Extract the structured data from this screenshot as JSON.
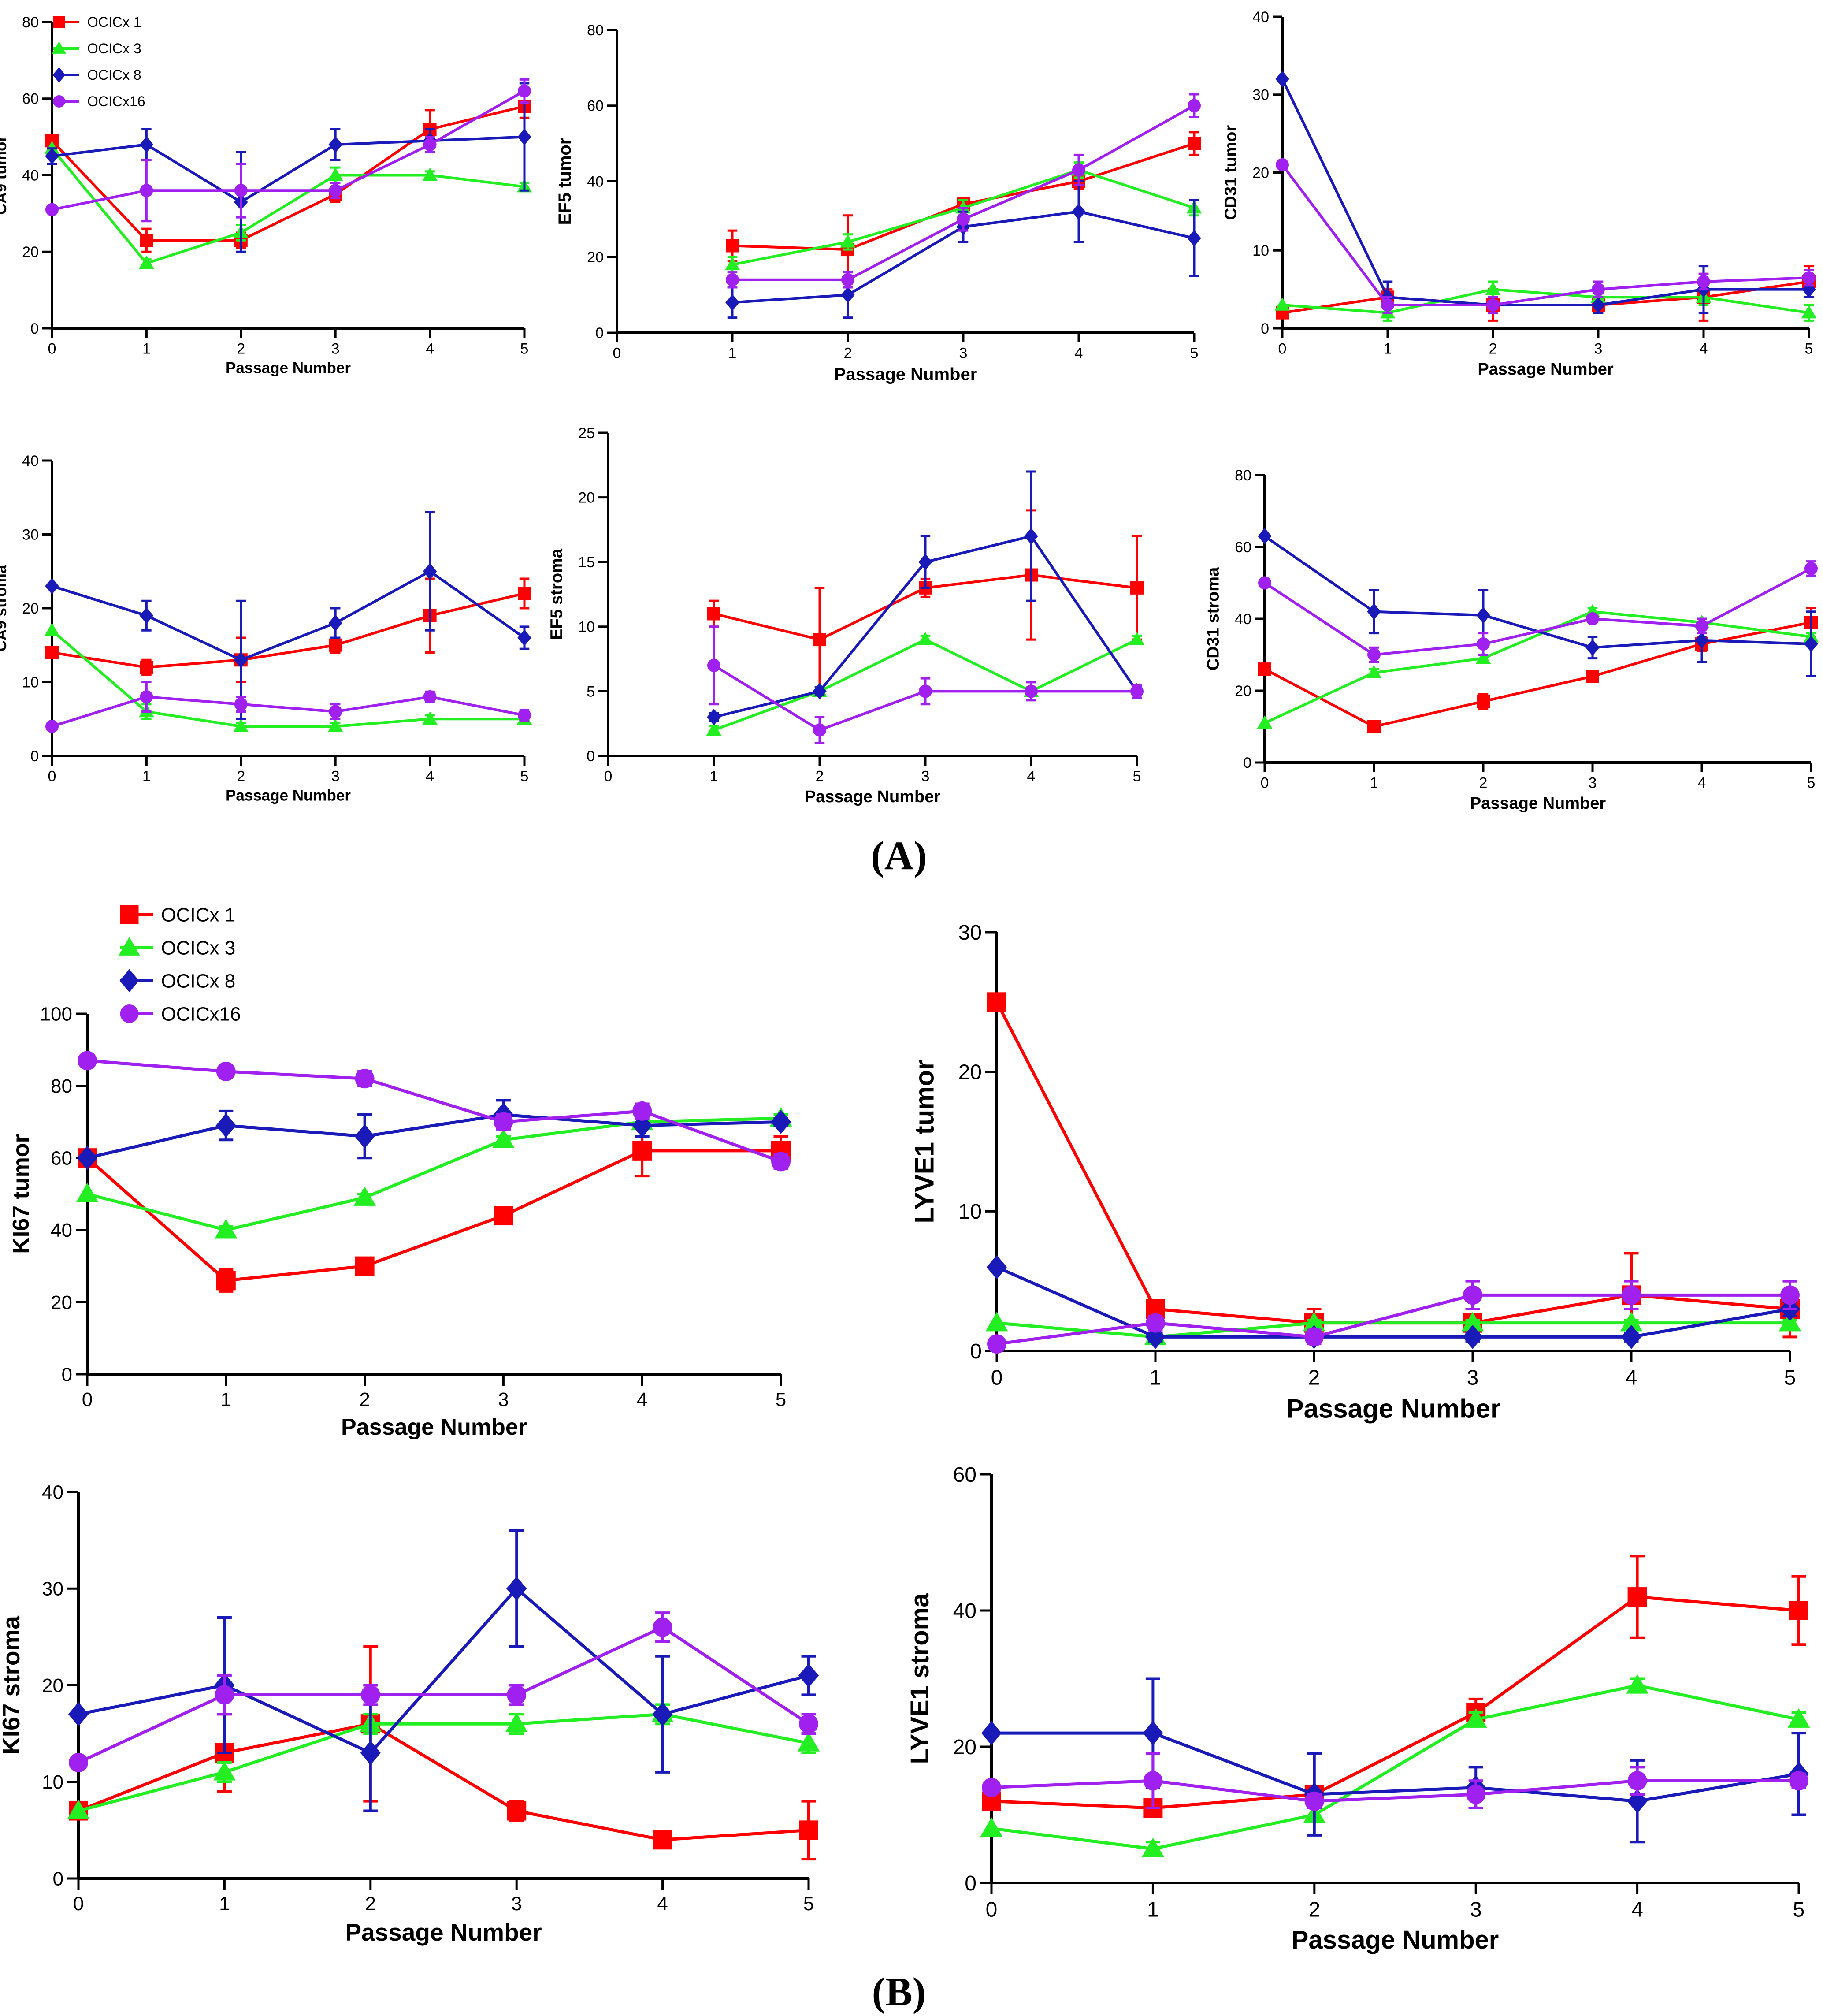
{
  "panel_labels": [
    "(A)",
    "(B)"
  ],
  "colors": {
    "OCICx 1": "#ff0000",
    "OCICx 3": "#22ee22",
    "OCICx 8": "#1a1ab8",
    "OCICx16": "#a020f0"
  },
  "markers": {
    "OCICx 1": "square",
    "OCICx 3": "triangle",
    "OCICx 8": "diamond",
    "OCICx16": "circle"
  },
  "chart_data": [
    {
      "type": "line",
      "title": "",
      "xlabel": "Passage Number",
      "ylabel": "CA9 tumor",
      "x": [
        0,
        1,
        2,
        3,
        4,
        5
      ],
      "xlim": [
        0,
        5
      ],
      "ylim": [
        0,
        80
      ],
      "yticks": [
        0,
        20,
        40,
        60,
        80
      ],
      "legend": [
        "OCICx 1",
        "OCICx 3",
        "OCICx 8",
        "OCICx16"
      ],
      "series": [
        {
          "name": "OCICx 1",
          "values": [
            49,
            23,
            23,
            35,
            52,
            58
          ],
          "err": [
            0,
            3,
            2,
            2,
            5,
            3
          ]
        },
        {
          "name": "OCICx 3",
          "values": [
            47,
            17,
            25,
            40,
            40,
            37
          ],
          "err": [
            0,
            1,
            2,
            2,
            1,
            1
          ]
        },
        {
          "name": "OCICx 8",
          "values": [
            45,
            48,
            33,
            48,
            49,
            50
          ],
          "err": [
            2,
            4,
            13,
            4,
            3,
            14
          ]
        },
        {
          "name": "OCICx16",
          "values": [
            31,
            36,
            36,
            36,
            48,
            62
          ],
          "err": [
            0,
            8,
            7,
            2,
            2,
            3
          ]
        }
      ]
    },
    {
      "type": "line",
      "title": "",
      "xlabel": "Passage Number",
      "ylabel": "EF5 tumor",
      "x": [
        1,
        2,
        3,
        4,
        5
      ],
      "xlim": [
        0,
        5
      ],
      "ylim": [
        0,
        80
      ],
      "yticks": [
        0,
        20,
        40,
        60,
        80
      ],
      "series": [
        {
          "name": "OCICx 1",
          "values": [
            23,
            22,
            34,
            40,
            50
          ],
          "err": [
            4,
            9,
            1,
            2,
            3
          ]
        },
        {
          "name": "OCICx 3",
          "values": [
            18,
            24,
            33,
            43,
            33
          ],
          "err": [
            2,
            2,
            2,
            2,
            2
          ]
        },
        {
          "name": "OCICx 8",
          "values": [
            8,
            10,
            28,
            32,
            25
          ],
          "err": [
            4,
            6,
            4,
            8,
            10
          ]
        },
        {
          "name": "OCICx16",
          "values": [
            14,
            14,
            30,
            43,
            60
          ],
          "err": [
            2,
            2,
            3,
            4,
            3
          ]
        }
      ]
    },
    {
      "type": "line",
      "title": "",
      "xlabel": "Passage Number",
      "ylabel": "CD31 tumor",
      "x": [
        0,
        1,
        2,
        3,
        4,
        5
      ],
      "xlim": [
        0,
        5
      ],
      "ylim": [
        0,
        40
      ],
      "yticks": [
        0,
        10,
        20,
        30,
        40
      ],
      "series": [
        {
          "name": "OCICx 1",
          "values": [
            2,
            4,
            3,
            3,
            4,
            6
          ],
          "err": [
            0,
            1,
            2,
            1,
            3,
            2
          ]
        },
        {
          "name": "OCICx 3",
          "values": [
            3,
            2,
            5,
            4,
            4,
            2
          ],
          "err": [
            0,
            1,
            1,
            1,
            1,
            1
          ]
        },
        {
          "name": "OCICx 8",
          "values": [
            32,
            4,
            3,
            3,
            5,
            5
          ],
          "err": [
            0,
            2,
            1,
            1,
            3,
            1
          ]
        },
        {
          "name": "OCICx16",
          "values": [
            21,
            3,
            3,
            5,
            6,
            6.5
          ],
          "err": [
            0,
            1,
            1,
            1,
            1,
            1
          ]
        }
      ]
    },
    {
      "type": "line",
      "title": "",
      "xlabel": "Passage Number",
      "ylabel": "CA9 stroma",
      "x": [
        0,
        1,
        2,
        3,
        4,
        5
      ],
      "xlim": [
        0,
        5
      ],
      "ylim": [
        0,
        40
      ],
      "yticks": [
        0,
        10,
        20,
        30,
        40
      ],
      "series": [
        {
          "name": "OCICx 1",
          "values": [
            14,
            12,
            13,
            15,
            19,
            22
          ],
          "err": [
            0,
            1,
            3,
            1,
            5,
            2
          ]
        },
        {
          "name": "OCICx 3",
          "values": [
            17,
            6,
            4,
            4,
            5,
            5
          ],
          "err": [
            0,
            1,
            0.5,
            0.5,
            0.5,
            0.5
          ]
        },
        {
          "name": "OCICx 8",
          "values": [
            23,
            19,
            13,
            18,
            25,
            16
          ],
          "err": [
            0,
            2,
            8,
            2,
            8,
            1.5
          ]
        },
        {
          "name": "OCICx16",
          "values": [
            4,
            8,
            7,
            6,
            8,
            5.5
          ],
          "err": [
            0,
            2,
            1,
            1,
            0.7,
            0.7
          ]
        }
      ]
    },
    {
      "type": "line",
      "title": "",
      "xlabel": "Passage Number",
      "ylabel": "EF5 stroma",
      "x": [
        1,
        2,
        3,
        4,
        5
      ],
      "xlim": [
        0,
        5
      ],
      "ylim": [
        0,
        25
      ],
      "yticks": [
        0,
        5,
        10,
        15,
        20,
        25
      ],
      "series": [
        {
          "name": "OCICx 1",
          "values": [
            11,
            9,
            13,
            14,
            13
          ],
          "err": [
            1,
            4,
            0.7,
            5,
            4
          ]
        },
        {
          "name": "OCICx 3",
          "values": [
            2,
            5,
            9,
            5,
            9
          ],
          "err": [
            0.3,
            0.3,
            0.3,
            0.3,
            0.3
          ]
        },
        {
          "name": "OCICx 8",
          "values": [
            3,
            5,
            15,
            17,
            5
          ],
          "err": [
            0.3,
            0.3,
            2,
            5,
            0.3
          ]
        },
        {
          "name": "OCICx16",
          "values": [
            7,
            2,
            5,
            5,
            5
          ],
          "err": [
            3,
            1,
            1,
            0.7,
            0.5
          ]
        }
      ]
    },
    {
      "type": "line",
      "title": "",
      "xlabel": "Passage Number",
      "ylabel": "CD31 stroma",
      "x": [
        0,
        1,
        2,
        3,
        4,
        5
      ],
      "xlim": [
        0,
        5
      ],
      "ylim": [
        0,
        80
      ],
      "yticks": [
        0,
        20,
        40,
        60,
        80
      ],
      "series": [
        {
          "name": "OCICx 1",
          "values": [
            26,
            10,
            17,
            24,
            33,
            39
          ],
          "err": [
            0,
            1,
            2,
            1,
            2,
            4
          ]
        },
        {
          "name": "OCICx 3",
          "values": [
            11,
            25,
            29,
            42,
            39,
            35
          ],
          "err": [
            0,
            1,
            1,
            1,
            1,
            1
          ]
        },
        {
          "name": "OCICx 8",
          "values": [
            63,
            42,
            41,
            32,
            34,
            33
          ],
          "err": [
            0,
            6,
            7,
            3,
            6,
            9
          ]
        },
        {
          "name": "OCICx16",
          "values": [
            50,
            30,
            33,
            40,
            38,
            54
          ],
          "err": [
            0,
            2,
            3,
            1,
            2,
            2
          ]
        }
      ]
    },
    {
      "type": "line",
      "title": "",
      "xlabel": "Passage Number",
      "ylabel": "KI67 tumor",
      "x": [
        0,
        1,
        2,
        3,
        4,
        5
      ],
      "xlim": [
        0,
        5
      ],
      "ylim": [
        0,
        100
      ],
      "yticks": [
        0,
        20,
        40,
        60,
        80,
        100
      ],
      "legend": [
        "OCICx 1",
        "OCICx 3",
        "OCICx 8",
        "OCICx16"
      ],
      "series": [
        {
          "name": "OCICx 1",
          "values": [
            60,
            26,
            30,
            44,
            62,
            62
          ],
          "err": [
            0,
            3,
            1,
            1,
            7,
            4
          ]
        },
        {
          "name": "OCICx 3",
          "values": [
            50,
            40,
            49,
            65,
            70,
            71
          ],
          "err": [
            0,
            1,
            1,
            1,
            1,
            1
          ]
        },
        {
          "name": "OCICx 8",
          "values": [
            60,
            69,
            66,
            72,
            69,
            70
          ],
          "err": [
            0,
            4,
            6,
            4,
            3,
            1
          ]
        },
        {
          "name": "OCICx16",
          "values": [
            87,
            84,
            82,
            70,
            73,
            59
          ],
          "err": [
            0,
            1,
            2,
            2,
            2,
            2
          ]
        }
      ]
    },
    {
      "type": "line",
      "title": "",
      "xlabel": "Passage Number",
      "ylabel": "LYVE1 tumor",
      "x": [
        0,
        1,
        2,
        3,
        4,
        5
      ],
      "xlim": [
        0,
        5
      ],
      "ylim": [
        0,
        30
      ],
      "yticks": [
        0,
        10,
        20,
        30
      ],
      "series": [
        {
          "name": "OCICx 1",
          "values": [
            25,
            3,
            2,
            2,
            4,
            3
          ],
          "err": [
            0,
            0.4,
            1,
            0.5,
            3,
            2
          ]
        },
        {
          "name": "OCICx 3",
          "values": [
            2,
            1,
            2,
            2,
            2,
            2
          ],
          "err": [
            0,
            0.2,
            0.2,
            0.2,
            0.2,
            0.2
          ]
        },
        {
          "name": "OCICx 8",
          "values": [
            6,
            1,
            1,
            1,
            1,
            3
          ],
          "err": [
            0,
            0.3,
            0.3,
            0.3,
            0.3,
            0.5
          ]
        },
        {
          "name": "OCICx16",
          "values": [
            0.5,
            2,
            1,
            4,
            4,
            4
          ],
          "err": [
            0,
            0.5,
            0.5,
            1,
            1,
            1
          ]
        }
      ]
    },
    {
      "type": "line",
      "title": "",
      "xlabel": "Passage Number",
      "ylabel": "KI67 stroma",
      "x": [
        0,
        1,
        2,
        3,
        4,
        5
      ],
      "xlim": [
        0,
        5
      ],
      "ylim": [
        0,
        40
      ],
      "yticks": [
        0,
        10,
        20,
        30,
        40
      ],
      "series": [
        {
          "name": "OCICx 1",
          "values": [
            7,
            13,
            16,
            7,
            4,
            5
          ],
          "err": [
            0,
            4,
            8,
            1,
            0.5,
            3
          ]
        },
        {
          "name": "OCICx 3",
          "values": [
            7,
            11,
            16,
            16,
            17,
            14
          ],
          "err": [
            0,
            1,
            1,
            1,
            1,
            1
          ]
        },
        {
          "name": "OCICx 8",
          "values": [
            17,
            20,
            13,
            30,
            17,
            21
          ],
          "err": [
            0,
            7,
            6,
            6,
            6,
            2
          ]
        },
        {
          "name": "OCICx16",
          "values": [
            12,
            19,
            19,
            19,
            26,
            16
          ],
          "err": [
            0,
            2,
            1,
            1,
            1.5,
            1
          ]
        }
      ]
    },
    {
      "type": "line",
      "title": "",
      "xlabel": "Passage Number",
      "ylabel": "LYVE1 stroma",
      "x": [
        0,
        1,
        2,
        3,
        4,
        5
      ],
      "xlim": [
        0,
        5
      ],
      "ylim": [
        0,
        60
      ],
      "yticks": [
        0,
        20,
        40,
        60
      ],
      "series": [
        {
          "name": "OCICx 1",
          "values": [
            12,
            11,
            13,
            25,
            42,
            40
          ],
          "err": [
            0,
            1,
            1,
            2,
            6,
            5
          ]
        },
        {
          "name": "OCICx 3",
          "values": [
            8,
            5,
            10,
            24,
            29,
            24
          ],
          "err": [
            0,
            1,
            1,
            1,
            1,
            1
          ]
        },
        {
          "name": "OCICx 8",
          "values": [
            22,
            22,
            13,
            14,
            12,
            16
          ],
          "err": [
            0,
            8,
            6,
            3,
            6,
            6
          ]
        },
        {
          "name": "OCICx16",
          "values": [
            14,
            15,
            12,
            13,
            15,
            15
          ],
          "err": [
            0,
            4,
            1,
            2,
            2,
            1
          ]
        }
      ]
    }
  ]
}
